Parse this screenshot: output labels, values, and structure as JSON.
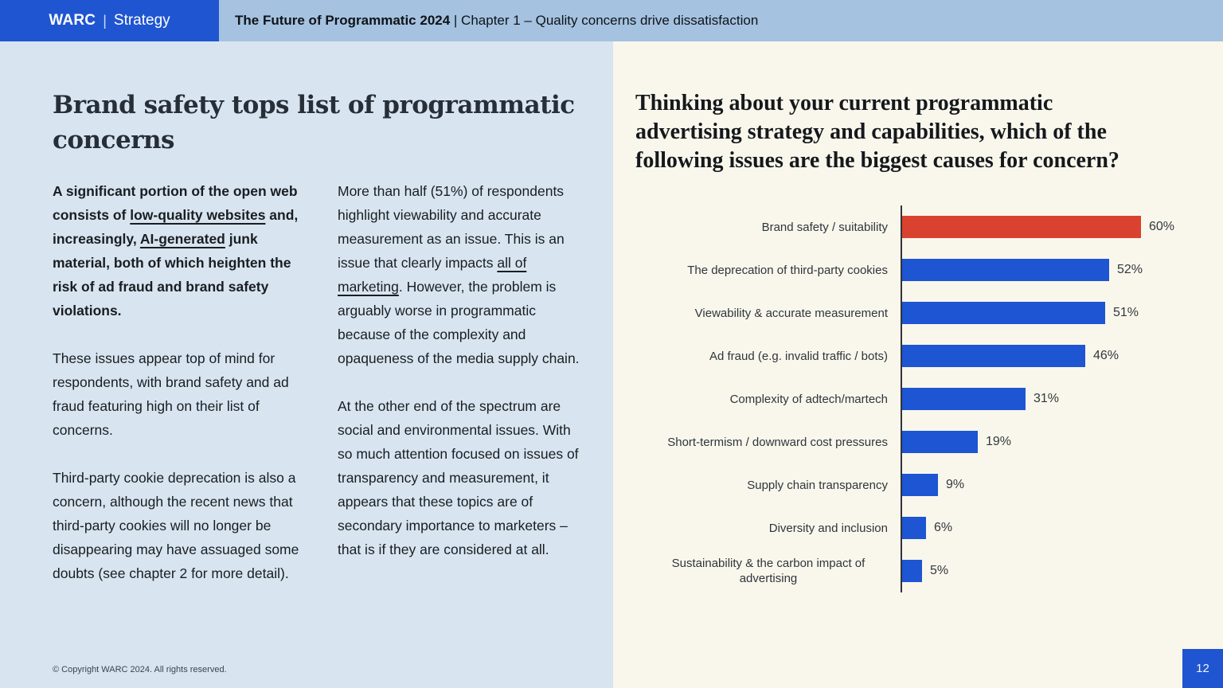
{
  "header": {
    "brand_name": "WARC",
    "brand_divider": "|",
    "brand_suffix": "Strategy",
    "title_bold": "The Future of Programmatic 2024",
    "title_rest": " | Chapter 1 – Quality concerns drive dissatisfaction"
  },
  "left": {
    "heading_lines": [
      "Brand safety tops list of programmatic",
      "concerns"
    ],
    "col1": {
      "p1_segments": [
        {
          "t": "A significant portion of the open web consists of "
        },
        {
          "t": "low-quality websites",
          "u": true
        },
        {
          "t": " and, increasingly, "
        },
        {
          "t": "AI-generated",
          "u": true
        },
        {
          "t": " junk material, both of which heighten the risk of ad fraud and brand safety violations."
        }
      ],
      "p2": "These issues appear top of mind for respondents, with brand safety and ad fraud featuring high on their list of concerns.",
      "p3": "Third-party cookie deprecation is also a concern, although the recent news that third-party cookies will no longer be disappearing may have assuaged some doubts (see chapter 2 for more detail)."
    },
    "col2": {
      "p1_segments": [
        {
          "t": "More than half (51%) of respondents highlight viewability and accurate measurement as an issue. This is an issue that clearly impacts "
        },
        {
          "t": "all of marketing",
          "u": true
        },
        {
          "t": ". However, the problem is arguably worse in programmatic because of the complexity and opaqueness of the media supply chain."
        }
      ],
      "p2": "At the other end of the spectrum are social and environmental issues. With so much attention focused on issues of transparency and measurement, it appears that these topics are of secondary importance to marketers – that is if they are considered at all."
    },
    "copyright": "© Copyright WARC 2024. All rights reserved."
  },
  "right": {
    "question_lines": [
      "Thinking about your current programmatic",
      "advertising strategy and capabilities, which of the",
      "following issues are the biggest causes for concern?"
    ]
  },
  "chart_data": {
    "type": "bar",
    "orientation": "horizontal",
    "categories": [
      "Brand safety / suitability",
      "The deprecation of third-party cookies",
      "Viewability & accurate measurement",
      "Ad fraud (e.g. invalid traffic / bots)",
      "Complexity of adtech/martech",
      "Short-termism / downward cost pressures",
      "Supply chain transparency",
      "Diversity and inclusion",
      "Sustainability & the carbon impact of advertising"
    ],
    "values": [
      60,
      52,
      51,
      46,
      31,
      19,
      9,
      6,
      5
    ],
    "unit": "%",
    "xlim": [
      0,
      70
    ],
    "grid": false,
    "legend": "none",
    "highlight_index": 0,
    "highlight_color": "#d9422e",
    "bar_color": "#1d55d3",
    "value_label_position": "right-of-bar"
  },
  "footer": {
    "page_number": "12"
  },
  "colors": {
    "accent_blue": "#1f55d0",
    "header_strip": "#a5c2e0",
    "left_background": "#d8e5f0",
    "right_background": "#f9f7ec",
    "highlight_red": "#d9422e"
  }
}
